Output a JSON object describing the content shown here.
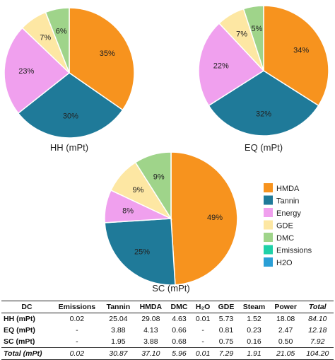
{
  "chart_data": [
    {
      "type": "pie",
      "title": "HH (mPt)",
      "slices": [
        {
          "label": "HMDA",
          "value": 35,
          "text": "35%"
        },
        {
          "label": "Tannin",
          "value": 30,
          "text": "30%"
        },
        {
          "label": "Energy",
          "value": 23,
          "text": "23%"
        },
        {
          "label": "GDE",
          "value": 7,
          "text": "7%"
        },
        {
          "label": "DMC",
          "value": 6,
          "text": "6%"
        }
      ]
    },
    {
      "type": "pie",
      "title": "EQ (mPt)",
      "slices": [
        {
          "label": "HMDA",
          "value": 34,
          "text": "34%"
        },
        {
          "label": "Tannin",
          "value": 32,
          "text": "32%"
        },
        {
          "label": "Energy",
          "value": 22,
          "text": "22%"
        },
        {
          "label": "GDE",
          "value": 7,
          "text": "7%"
        },
        {
          "label": "DMC",
          "value": 5,
          "text": "5%"
        }
      ]
    },
    {
      "type": "pie",
      "title": "SC (mPt)",
      "slices": [
        {
          "label": "HMDA",
          "value": 49,
          "text": "49%"
        },
        {
          "label": "Tannin",
          "value": 25,
          "text": "25%"
        },
        {
          "label": "Energy",
          "value": 8,
          "text": "8%"
        },
        {
          "label": "GDE",
          "value": 9,
          "text": "9%"
        },
        {
          "label": "DMC",
          "value": 9,
          "text": "9%"
        }
      ]
    }
  ],
  "legend": {
    "placement": "right",
    "items": [
      {
        "label": "HMDA",
        "color": "#f7931e"
      },
      {
        "label": "Tannin",
        "color": "#1f7a99"
      },
      {
        "label": "Energy",
        "color": "#f0a0ee"
      },
      {
        "label": "GDE",
        "color": "#fde7a3"
      },
      {
        "label": "DMC",
        "color": "#9fd48a"
      },
      {
        "label": "Emissions",
        "color": "#1fd1a8"
      },
      {
        "label": "H2O",
        "color": "#2a9fd6"
      }
    ]
  },
  "table": {
    "headers": [
      "DC",
      "Emissions",
      "Tannin",
      "HMDA",
      "DMC",
      "H₂O",
      "GDE",
      "Steam",
      "Power",
      "Total"
    ],
    "rows": [
      {
        "label": "HH (mPt)",
        "cells": [
          "0.02",
          "25.04",
          "29.08",
          "4.63",
          "0.01",
          "5.73",
          "1.52",
          "18.08",
          "84.10"
        ]
      },
      {
        "label": "EQ (mPt)",
        "cells": [
          "-",
          "3.88",
          "4.13",
          "0.66",
          "-",
          "0.81",
          "0.23",
          "2.47",
          "12.18"
        ]
      },
      {
        "label": "SC (mPt)",
        "cells": [
          "-",
          "1.95",
          "3.88",
          "0.68",
          "-",
          "0.75",
          "0.16",
          "0.50",
          "7.92"
        ]
      },
      {
        "label": "Total (mPt)",
        "cells": [
          "0.02",
          "30.87",
          "37.10",
          "5.96",
          "0.01",
          "7.29",
          "1.91",
          "21.05",
          "104.20"
        ]
      }
    ]
  }
}
